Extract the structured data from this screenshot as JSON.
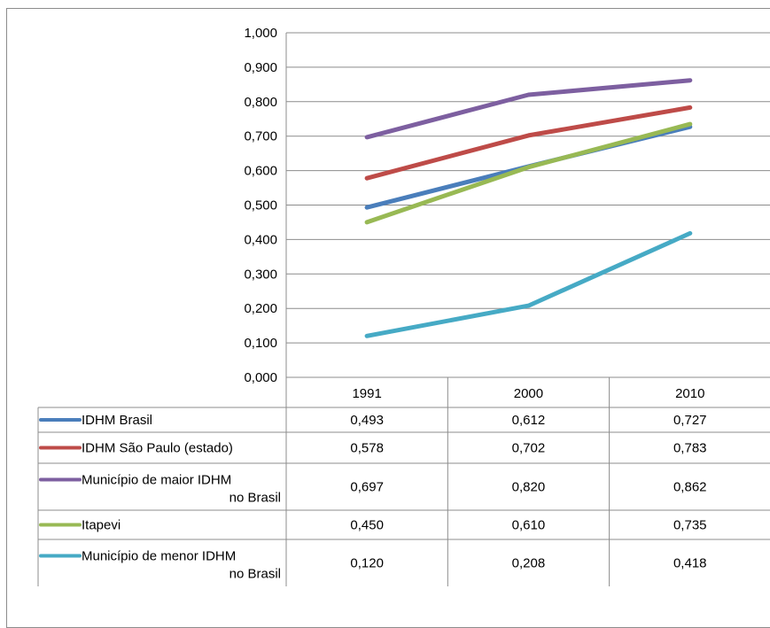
{
  "chart_data": {
    "type": "line",
    "title": "",
    "xlabel": "",
    "ylabel": "",
    "ylim": [
      0,
      1
    ],
    "y_ticks": [
      "0,000",
      "0,100",
      "0,200",
      "0,300",
      "0,400",
      "0,500",
      "0,600",
      "0,700",
      "0,800",
      "0,900",
      "1,000"
    ],
    "categories": [
      "1991",
      "2000",
      "2010"
    ],
    "grid": true,
    "legend": "data-table",
    "series": [
      {
        "name_lines": [
          "IDHM Brasil"
        ],
        "color": "#4a7ebb",
        "values": [
          0.493,
          0.612,
          0.727
        ],
        "labels": [
          "0,493",
          "0,612",
          "0,727"
        ]
      },
      {
        "name_lines": [
          "IDHM São Paulo (estado)"
        ],
        "color": "#be4b48",
        "values": [
          0.578,
          0.702,
          0.783
        ],
        "labels": [
          "0,578",
          "0,702",
          "0,783"
        ]
      },
      {
        "name_lines": [
          "Município de maior IDHM",
          "no Brasil"
        ],
        "color": "#7d5fa0",
        "values": [
          0.697,
          0.82,
          0.862
        ],
        "labels": [
          "0,697",
          "0,820",
          "0,862"
        ]
      },
      {
        "name_lines": [
          "Itapevi"
        ],
        "color": "#98b954",
        "values": [
          0.45,
          0.61,
          0.735
        ],
        "labels": [
          "0,450",
          "0,610",
          "0,735"
        ]
      },
      {
        "name_lines": [
          "Município de menor IDHM",
          "no Brasil"
        ],
        "color": "#46aac5",
        "values": [
          0.12,
          0.208,
          0.418
        ],
        "labels": [
          "0,120",
          "0,208",
          "0,418"
        ]
      }
    ]
  }
}
